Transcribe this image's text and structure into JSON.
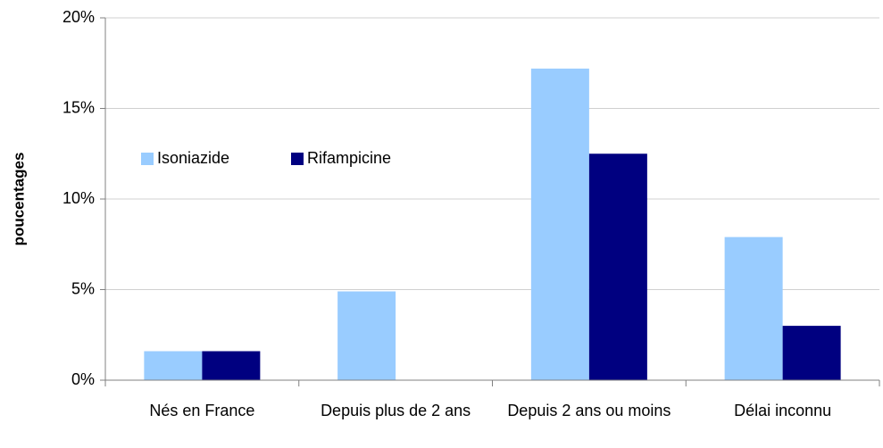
{
  "chart_data": {
    "type": "bar",
    "y_label": "poucentages",
    "categories": [
      "Nés en France",
      "Depuis plus de 2 ans",
      "Depuis 2 ans ou moins",
      "Délai inconnu"
    ],
    "series": [
      {
        "name": "Isoniazide",
        "color": "#99ccff",
        "values": [
          1.6,
          4.9,
          17.2,
          7.9
        ]
      },
      {
        "name": "Rifampicine",
        "color": "#000080",
        "values": [
          1.6,
          0,
          12.5,
          3.0
        ]
      }
    ],
    "ylim": [
      0,
      20
    ],
    "yticks": [
      {
        "value": 0,
        "label": "0%"
      },
      {
        "value": 5,
        "label": "5%"
      },
      {
        "value": 10,
        "label": "10%"
      },
      {
        "value": 15,
        "label": "15%"
      },
      {
        "value": 20,
        "label": "20%"
      }
    ],
    "grid": true
  }
}
